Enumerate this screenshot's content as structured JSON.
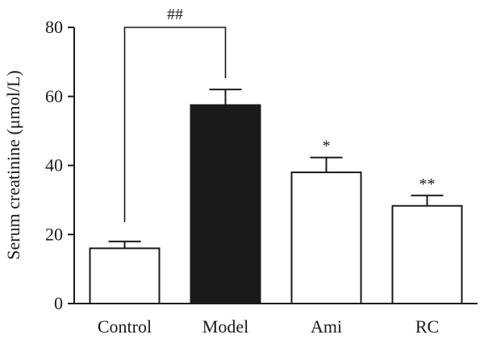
{
  "chart_data": {
    "type": "bar",
    "title": "",
    "xlabel": "",
    "ylabel": "Serum creatinine (μmol/L)",
    "ylim": [
      0,
      80
    ],
    "yticks": [
      0,
      20,
      40,
      60,
      80
    ],
    "grid": false,
    "categories": [
      "Control",
      "Model",
      "Ami",
      "RC"
    ],
    "values": [
      16,
      57.5,
      38,
      28.3
    ],
    "errors": [
      2,
      4.5,
      4.3,
      3
    ],
    "colors": [
      "#ffffff",
      "#1a1a1a",
      "#ffffff",
      "#ffffff"
    ],
    "significance": [
      "",
      "",
      "*",
      "**"
    ],
    "comparison": {
      "from": "Control",
      "to": "Model",
      "label": "##"
    }
  }
}
